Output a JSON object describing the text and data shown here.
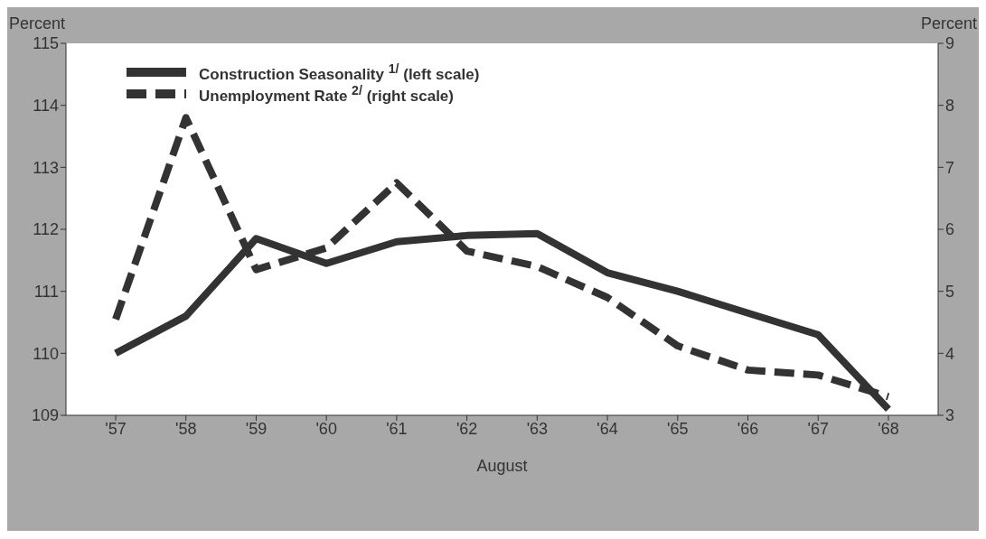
{
  "chart_data": {
    "type": "line",
    "xlabel": "August",
    "ylabel": "Percent",
    "y2label": "Percent",
    "categories": [
      "'57",
      "'58",
      "'59",
      "'60",
      "'61",
      "'62",
      "'63",
      "'64",
      "'65",
      "'66",
      "'67",
      "'68"
    ],
    "series": [
      {
        "name": "Construction Seasonality $^{1/}$  (left scale)",
        "color": "#333333",
        "line_style": "solid",
        "values": [
          110.0,
          110.6,
          111.85,
          111.45,
          111.8,
          111.9,
          111.93,
          111.3,
          111.0,
          110.65,
          110.3,
          109.1
        ]
      },
      {
        "name": "Unemployment Rate $^{2/}$ (right scale)",
        "color": "#333333",
        "line_style": "dashed",
        "axis": "y2",
        "values": [
          4.55,
          7.8,
          5.35,
          5.7,
          6.75,
          5.65,
          5.4,
          4.9,
          4.12,
          3.73,
          3.65,
          3.3
        ]
      }
    ],
    "ylim": [
      109,
      115
    ],
    "yticks": [
      109,
      110,
      111,
      112,
      113,
      114,
      115
    ],
    "y2lim": [
      3,
      9
    ],
    "y2ticks": [
      3,
      4,
      5,
      6,
      7,
      8,
      9
    ],
    "grid": false,
    "legend": "top left",
    "marker": "none"
  }
}
